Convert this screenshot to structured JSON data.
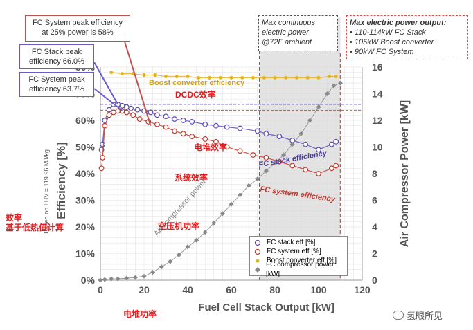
{
  "annotations": {
    "sys_peak_box": [
      "FC System peak efficiency",
      "at 25% power is 58%"
    ],
    "stack_peak_box": [
      "FC Stack peak",
      "efficiency 66.0%"
    ],
    "sys_peak2_box": [
      "FC System peak",
      "efficiency 63.7%"
    ],
    "max_continuous_box": [
      "Max continuous",
      "electric power",
      "@72F ambient"
    ],
    "max_power_title": "Max electric power output:",
    "max_power_items": [
      "110-114kW FC Stack",
      "105kW Boost converter",
      "90kW FC System"
    ],
    "boost_label": "Boost converter efficiency",
    "boost_cn": "DCDC效率",
    "stack_label": "FC stack efficiency",
    "stack_cn": "电堆效率",
    "system_label": "FC system efficiency",
    "system_cn": "系统效率",
    "compressor_label": "Air compressor power",
    "compressor_cn": "空压机功率",
    "lhv_note": "Based on LHV = 119.96 MJ/kg",
    "eff_cn_1": "效率",
    "eff_cn_2": "基于低热值计算",
    "xlabel_cn": "电堆功率"
  },
  "watermark": "氢眼所见",
  "chart_data": {
    "type": "scatter",
    "xlabel": "Fuel Cell Stack Output [kW]",
    "ylabel_left": "Efficiency [%]",
    "ylabel_right": "Air Compressor Power [kW]",
    "xlim": [
      0,
      120
    ],
    "ylim_left": [
      0,
      80
    ],
    "ylim_right": [
      0,
      16
    ],
    "xticks": [
      "0",
      "20",
      "40",
      "60",
      "80",
      "100",
      "120"
    ],
    "yticks_left": [
      "0%",
      "10%",
      "20%",
      "30%",
      "40%",
      "50%",
      "60%",
      "70%",
      "80%"
    ],
    "yticks_right": [
      "0",
      "2",
      "4",
      "6",
      "8",
      "10",
      "12",
      "14",
      "16"
    ],
    "shaded_region_x": [
      73,
      110
    ],
    "reference_lines_pct": [
      66.0,
      63.7
    ],
    "colors": {
      "stack": "#5b4bb7",
      "system": "#c0392b",
      "boost": "#e6b422",
      "compressor": "#888888",
      "ref1": "#5b4bb7",
      "ref2": "#c0392b"
    },
    "series": [
      {
        "name": "FC stack eff [%]",
        "axis": "left",
        "marker": "open-circle",
        "color": "#5b4bb7",
        "points": [
          [
            0.5,
            49
          ],
          [
            1,
            51
          ],
          [
            2,
            60
          ],
          [
            4,
            64
          ],
          [
            6,
            66
          ],
          [
            8,
            66
          ],
          [
            10,
            65.5
          ],
          [
            12,
            65
          ],
          [
            14,
            64.5
          ],
          [
            17,
            64
          ],
          [
            20,
            63.5
          ],
          [
            23,
            63
          ],
          [
            26,
            62
          ],
          [
            30,
            61.5
          ],
          [
            34,
            60.5
          ],
          [
            38,
            60
          ],
          [
            42,
            59.5
          ],
          [
            48,
            58.5
          ],
          [
            53,
            58
          ],
          [
            58,
            57.5
          ],
          [
            64,
            57
          ],
          [
            72,
            56
          ],
          [
            76,
            55
          ],
          [
            82,
            54
          ],
          [
            88,
            52.5
          ],
          [
            94,
            51
          ],
          [
            100,
            49
          ],
          [
            106,
            51
          ],
          [
            108,
            52
          ]
        ]
      },
      {
        "name": "FC system eff [%]",
        "axis": "left",
        "marker": "open-circle",
        "color": "#c0392b",
        "points": [
          [
            0.5,
            42
          ],
          [
            1,
            46
          ],
          [
            2,
            58
          ],
          [
            4,
            62
          ],
          [
            6,
            63
          ],
          [
            8,
            63.5
          ],
          [
            10,
            63.5
          ],
          [
            12,
            63
          ],
          [
            15,
            62
          ],
          [
            18,
            60.5
          ],
          [
            22,
            59.5
          ],
          [
            26,
            58.5
          ],
          [
            30,
            57.5
          ],
          [
            34,
            56
          ],
          [
            38,
            55
          ],
          [
            42,
            54
          ],
          [
            48,
            53
          ],
          [
            53,
            52
          ],
          [
            58,
            50
          ],
          [
            64,
            48.5
          ],
          [
            70,
            47
          ],
          [
            76,
            46
          ],
          [
            82,
            44.5
          ],
          [
            88,
            43
          ],
          [
            94,
            41.5
          ],
          [
            100,
            40
          ],
          [
            106,
            42
          ],
          [
            108,
            43
          ]
        ]
      },
      {
        "name": "Boost converter eff [%]",
        "axis": "left",
        "marker": "dot",
        "color": "#e6b422",
        "points": [
          [
            5,
            78
          ],
          [
            10,
            77.5
          ],
          [
            15,
            77.5
          ],
          [
            20,
            77
          ],
          [
            25,
            77
          ],
          [
            30,
            76.5
          ],
          [
            35,
            76.5
          ],
          [
            40,
            76.5
          ],
          [
            45,
            76
          ],
          [
            50,
            76
          ],
          [
            55,
            76
          ],
          [
            60,
            76
          ],
          [
            65,
            76
          ],
          [
            70,
            76
          ],
          [
            75,
            76
          ],
          [
            80,
            76
          ],
          [
            85,
            76
          ],
          [
            90,
            76
          ],
          [
            95,
            76
          ],
          [
            100,
            76
          ],
          [
            105,
            76.5
          ],
          [
            108,
            76.5
          ]
        ]
      },
      {
        "name": "FC compressor power [kW]",
        "axis": "right",
        "marker": "diamond",
        "color": "#888888",
        "points": [
          [
            0,
            0
          ],
          [
            2,
            0.05
          ],
          [
            5,
            0.1
          ],
          [
            8,
            0.1
          ],
          [
            12,
            0.15
          ],
          [
            16,
            0.2
          ],
          [
            20,
            0.3
          ],
          [
            24,
            0.6
          ],
          [
            28,
            1.0
          ],
          [
            32,
            1.4
          ],
          [
            36,
            1.9
          ],
          [
            40,
            2.5
          ],
          [
            44,
            3.0
          ],
          [
            48,
            3.6
          ],
          [
            52,
            4.3
          ],
          [
            56,
            5.0
          ],
          [
            60,
            5.7
          ],
          [
            64,
            6.4
          ],
          [
            68,
            7.1
          ],
          [
            72,
            7.6
          ],
          [
            76,
            8.2
          ],
          [
            80,
            8.8
          ],
          [
            84,
            9.4
          ],
          [
            88,
            10.2
          ],
          [
            92,
            11.0
          ],
          [
            96,
            12.0
          ],
          [
            100,
            13.0
          ],
          [
            104,
            14.0
          ],
          [
            107,
            14.6
          ],
          [
            110,
            14.8
          ]
        ]
      }
    ]
  }
}
